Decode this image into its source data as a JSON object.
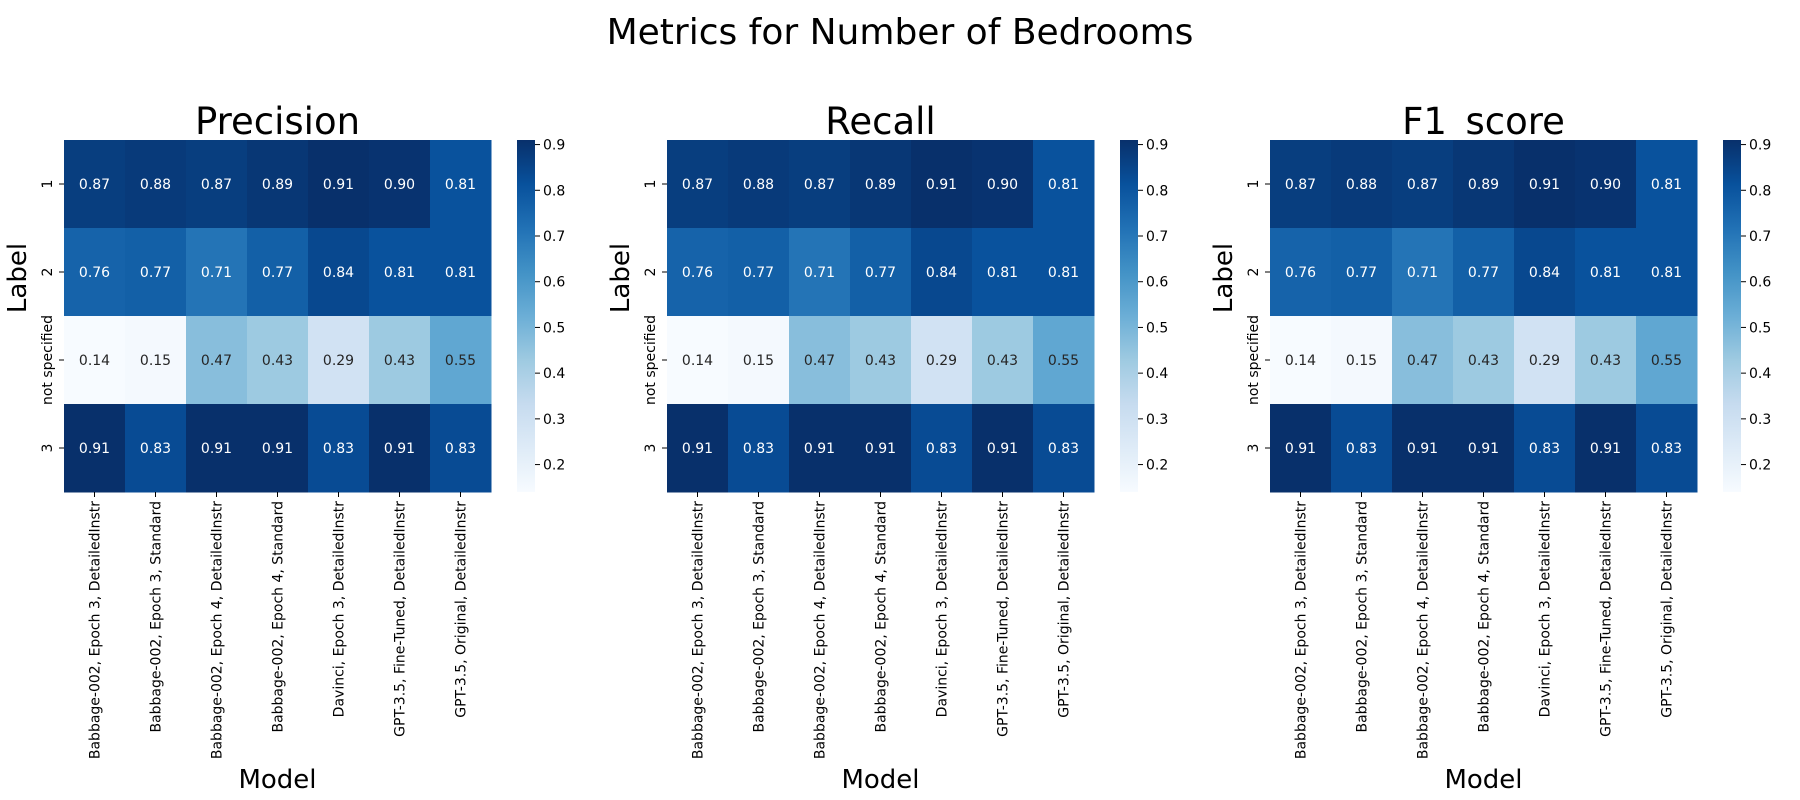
{
  "chart_data": {
    "type": "heatmap",
    "title": "Metrics for Number of Bedrooms",
    "colormap": "Blues",
    "cell_format": "0.00",
    "x_categories": [
      "Babbage-002, Epoch 3, DetailedInstr",
      "Babbage-002, Epoch 3, Standard",
      "Babbage-002, Epoch 4, DetailedInstr",
      "Babbage-002, Epoch 4, Standard",
      "Davinci, Epoch 3, DetailedInstr",
      "GPT-3.5, Fine-Tuned, DetailedInstr",
      "GPT-3.5, Original, DetailedInstr"
    ],
    "y_categories": [
      "1",
      "2",
      "not specified",
      "3"
    ],
    "xlabel": "Model",
    "ylabel": "Label",
    "colorbar": {
      "range": [
        0.14,
        0.91
      ],
      "ticks": [
        0.2,
        0.3,
        0.4,
        0.5,
        0.6,
        0.7,
        0.8,
        0.9
      ]
    },
    "panels": [
      {
        "title": "Precision",
        "values": [
          [
            0.87,
            0.88,
            0.87,
            0.89,
            0.91,
            0.9,
            0.81
          ],
          [
            0.76,
            0.77,
            0.71,
            0.77,
            0.84,
            0.81,
            0.81
          ],
          [
            0.14,
            0.15,
            0.47,
            0.43,
            0.29,
            0.43,
            0.55
          ],
          [
            0.91,
            0.83,
            0.91,
            0.91,
            0.83,
            0.91,
            0.83
          ]
        ]
      },
      {
        "title": "Recall",
        "values": [
          [
            0.87,
            0.88,
            0.87,
            0.89,
            0.91,
            0.9,
            0.81
          ],
          [
            0.76,
            0.77,
            0.71,
            0.77,
            0.84,
            0.81,
            0.81
          ],
          [
            0.14,
            0.15,
            0.47,
            0.43,
            0.29,
            0.43,
            0.55
          ],
          [
            0.91,
            0.83,
            0.91,
            0.91,
            0.83,
            0.91,
            0.83
          ]
        ]
      },
      {
        "title": "F1_score",
        "values": [
          [
            0.87,
            0.88,
            0.87,
            0.89,
            0.91,
            0.9,
            0.81
          ],
          [
            0.76,
            0.77,
            0.71,
            0.77,
            0.84,
            0.81,
            0.81
          ],
          [
            0.14,
            0.15,
            0.47,
            0.43,
            0.29,
            0.43,
            0.55
          ],
          [
            0.91,
            0.83,
            0.91,
            0.91,
            0.83,
            0.91,
            0.83
          ]
        ]
      }
    ]
  }
}
